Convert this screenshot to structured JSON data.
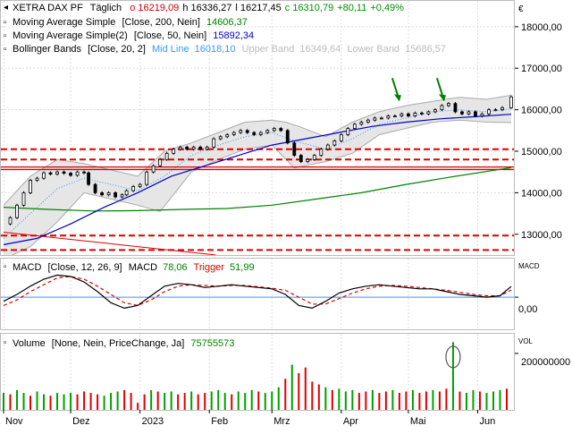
{
  "header": {
    "symbol": "XETRA DAX PF",
    "period": "Täglich",
    "ohlc": [
      {
        "label": "o",
        "value": "16219,09",
        "color": "#d00000"
      },
      {
        "label": "h",
        "value": "16336,27",
        "color": "#000000"
      },
      {
        "label": "l",
        "value": "16217,45",
        "color": "#000000"
      },
      {
        "label": "c",
        "value": "16310,79",
        "color": "#009000"
      },
      {
        "label": "",
        "value": "+80,11",
        "color": "#009000"
      },
      {
        "label": "",
        "value": "+0,49%",
        "color": "#009000"
      }
    ]
  },
  "legend": [
    {
      "name": "Moving Average Simple",
      "params": "[Close, 200, Nein]",
      "value": "14606,37",
      "color": "#008000"
    },
    {
      "name": "Moving Average Simple(2)",
      "params": "[Close, 50, Nein]",
      "value": "15892,34",
      "color": "#0000cc"
    },
    {
      "name": "Bollinger Bands",
      "params": "[Close, 20, 2]",
      "mid_label": "Mid Line",
      "mid_value": "16018,10",
      "mid_color": "#3399ff",
      "upper_label": "Upper Band",
      "upper_value": "16349,64",
      "lower_label": "Lower Band",
      "lower_value": "15686,57",
      "band_color": "#bbbbbb"
    }
  ],
  "currency_symbol": "€",
  "macd": {
    "label": "MACD",
    "params": "[Close, 12, 26, 9]",
    "macd_label": "MACD",
    "macd_value": "78,06",
    "trigger_label": "Trigger",
    "trigger_value": "51,99",
    "axis_title": "MACD",
    "tick_label": "0,00"
  },
  "volume": {
    "label": "Volume",
    "params": "[None, Nein, PriceChange, Ja]",
    "value": "75755573",
    "axis_title": "VOL",
    "tick_label": "200000000"
  },
  "chart_data": {
    "type": "candlestick",
    "y_range": [
      12500,
      18600
    ],
    "y_ticks": [
      {
        "value": 13000,
        "label": "13000,00"
      },
      {
        "value": 14000,
        "label": "14000,00"
      },
      {
        "value": 15000,
        "label": "15000,00"
      },
      {
        "value": 16000,
        "label": "16000,00"
      },
      {
        "value": 17000,
        "label": "17000,00"
      },
      {
        "value": 18000,
        "label": "18000,00"
      }
    ],
    "x_labels": [
      {
        "day": 0,
        "label": "Nov"
      },
      {
        "day": 30,
        "label": "Dez"
      },
      {
        "day": 61,
        "label": "2023"
      },
      {
        "day": 92,
        "label": "Feb"
      },
      {
        "day": 120,
        "label": "Mrz"
      },
      {
        "day": 151,
        "label": "Apr"
      },
      {
        "day": 181,
        "label": "Mai"
      },
      {
        "day": 212,
        "label": "Jun"
      }
    ],
    "day_range": [
      0,
      227
    ],
    "close_series": [
      [
        0,
        13250
      ],
      [
        3,
        13400
      ],
      [
        6,
        13700
      ],
      [
        9,
        14000
      ],
      [
        12,
        14300
      ],
      [
        15,
        14350
      ],
      [
        18,
        14480
      ],
      [
        21,
        14450
      ],
      [
        24,
        14500
      ],
      [
        27,
        14470
      ],
      [
        30,
        14420
      ],
      [
        33,
        14500
      ],
      [
        36,
        14480
      ],
      [
        38,
        14200
      ],
      [
        41,
        14000
      ],
      [
        44,
        13950
      ],
      [
        47,
        14000
      ],
      [
        50,
        13900
      ],
      [
        53,
        13950
      ],
      [
        55,
        14050
      ],
      [
        58,
        14150
      ],
      [
        61,
        14200
      ],
      [
        64,
        14500
      ],
      [
        67,
        14650
      ],
      [
        70,
        14800
      ],
      [
        73,
        14950
      ],
      [
        76,
        15050
      ],
      [
        79,
        15100
      ],
      [
        82,
        15050
      ],
      [
        85,
        15100
      ],
      [
        88,
        15050
      ],
      [
        91,
        15100
      ],
      [
        94,
        15300
      ],
      [
        97,
        15350
      ],
      [
        100,
        15400
      ],
      [
        103,
        15450
      ],
      [
        106,
        15500
      ],
      [
        109,
        15450
      ],
      [
        112,
        15400
      ],
      [
        115,
        15450
      ],
      [
        118,
        15500
      ],
      [
        121,
        15550
      ],
      [
        124,
        15500
      ],
      [
        127,
        15200
      ],
      [
        130,
        14900
      ],
      [
        133,
        14750
      ],
      [
        136,
        14800
      ],
      [
        139,
        14900
      ],
      [
        142,
        15050
      ],
      [
        145,
        15150
      ],
      [
        148,
        15250
      ],
      [
        151,
        15400
      ],
      [
        154,
        15550
      ],
      [
        157,
        15650
      ],
      [
        160,
        15700
      ],
      [
        163,
        15750
      ],
      [
        166,
        15800
      ],
      [
        169,
        15800
      ],
      [
        172,
        15850
      ],
      [
        175,
        15850
      ],
      [
        178,
        15900
      ],
      [
        181,
        15850
      ],
      [
        184,
        15920
      ],
      [
        187,
        15900
      ],
      [
        190,
        15950
      ],
      [
        193,
        16000
      ],
      [
        196,
        16100
      ],
      [
        199,
        16150
      ],
      [
        202,
        15950
      ],
      [
        205,
        15900
      ],
      [
        208,
        15950
      ],
      [
        211,
        15850
      ],
      [
        214,
        15900
      ],
      [
        217,
        16000
      ],
      [
        220,
        16000
      ],
      [
        223,
        16050
      ],
      [
        227,
        16310
      ]
    ],
    "bollinger_upper": [
      [
        0,
        13700
      ],
      [
        12,
        14400
      ],
      [
        24,
        14800
      ],
      [
        36,
        14700
      ],
      [
        48,
        14550
      ],
      [
        60,
        14400
      ],
      [
        72,
        15000
      ],
      [
        84,
        15200
      ],
      [
        96,
        15450
      ],
      [
        108,
        15700
      ],
      [
        120,
        15750
      ],
      [
        126,
        15700
      ],
      [
        132,
        15600
      ],
      [
        144,
        15350
      ],
      [
        156,
        15700
      ],
      [
        168,
        15950
      ],
      [
        180,
        16100
      ],
      [
        192,
        16200
      ],
      [
        204,
        16300
      ],
      [
        216,
        16250
      ],
      [
        227,
        16350
      ]
    ],
    "bollinger_mid": [
      [
        0,
        12900
      ],
      [
        12,
        13500
      ],
      [
        24,
        14100
      ],
      [
        36,
        14350
      ],
      [
        48,
        14200
      ],
      [
        60,
        14050
      ],
      [
        72,
        14400
      ],
      [
        84,
        14900
      ],
      [
        96,
        15150
      ],
      [
        108,
        15350
      ],
      [
        120,
        15450
      ],
      [
        130,
        15250
      ],
      [
        144,
        15050
      ],
      [
        156,
        15300
      ],
      [
        168,
        15650
      ],
      [
        180,
        15800
      ],
      [
        192,
        15950
      ],
      [
        204,
        16000
      ],
      [
        216,
        15950
      ],
      [
        227,
        16020
      ]
    ],
    "bollinger_lower": [
      [
        0,
        12400
      ],
      [
        12,
        12700
      ],
      [
        24,
        13300
      ],
      [
        36,
        14000
      ],
      [
        48,
        13850
      ],
      [
        60,
        13700
      ],
      [
        70,
        13550
      ],
      [
        84,
        14500
      ],
      [
        96,
        14800
      ],
      [
        108,
        15050
      ],
      [
        120,
        15150
      ],
      [
        130,
        14600
      ],
      [
        144,
        14750
      ],
      [
        156,
        14950
      ],
      [
        168,
        15400
      ],
      [
        180,
        15550
      ],
      [
        192,
        15700
      ],
      [
        204,
        15750
      ],
      [
        216,
        15700
      ],
      [
        227,
        15690
      ]
    ],
    "sma50": [
      [
        0,
        12750
      ],
      [
        15,
        12900
      ],
      [
        30,
        13250
      ],
      [
        45,
        13650
      ],
      [
        60,
        14000
      ],
      [
        75,
        14400
      ],
      [
        90,
        14650
      ],
      [
        105,
        14900
      ],
      [
        120,
        15150
      ],
      [
        135,
        15300
      ],
      [
        150,
        15450
      ],
      [
        165,
        15600
      ],
      [
        180,
        15700
      ],
      [
        195,
        15780
      ],
      [
        210,
        15830
      ],
      [
        227,
        15890
      ]
    ],
    "sma200": [
      [
        0,
        13650
      ],
      [
        20,
        13600
      ],
      [
        40,
        13560
      ],
      [
        60,
        13570
      ],
      [
        80,
        13600
      ],
      [
        100,
        13620
      ],
      [
        120,
        13700
      ],
      [
        140,
        13850
      ],
      [
        160,
        14000
      ],
      [
        180,
        14200
      ],
      [
        200,
        14380
      ],
      [
        227,
        14606
      ]
    ],
    "resistance_lines": [
      {
        "value": 15050,
        "style": "dashed"
      },
      {
        "value": 14800,
        "style": "dashed"
      },
      {
        "value": 14620,
        "style": "solid"
      },
      {
        "value": 14560,
        "style": "solid"
      },
      {
        "value": 12970,
        "style": "dashed"
      },
      {
        "value": 12620,
        "style": "dashed"
      }
    ],
    "trendline": [
      [
        0,
        13050
      ],
      [
        95,
        12500
      ]
    ],
    "annotations": [
      {
        "type": "arrow",
        "day": 177,
        "value": 16200
      },
      {
        "type": "arrow",
        "day": 197,
        "value": 16200
      }
    ],
    "macd_panel": {
      "y_range": [
        -220,
        260
      ],
      "zero": 0,
      "macd": [
        [
          0,
          -30
        ],
        [
          6,
          20
        ],
        [
          12,
          80
        ],
        [
          18,
          130
        ],
        [
          24,
          160
        ],
        [
          30,
          150
        ],
        [
          36,
          110
        ],
        [
          42,
          40
        ],
        [
          48,
          -40
        ],
        [
          54,
          -80
        ],
        [
          60,
          -60
        ],
        [
          66,
          10
        ],
        [
          72,
          80
        ],
        [
          78,
          100
        ],
        [
          84,
          90
        ],
        [
          90,
          70
        ],
        [
          96,
          80
        ],
        [
          102,
          90
        ],
        [
          108,
          80
        ],
        [
          114,
          70
        ],
        [
          120,
          60
        ],
        [
          126,
          20
        ],
        [
          132,
          -60
        ],
        [
          138,
          -80
        ],
        [
          144,
          -30
        ],
        [
          150,
          30
        ],
        [
          156,
          60
        ],
        [
          162,
          80
        ],
        [
          168,
          90
        ],
        [
          174,
          80
        ],
        [
          180,
          70
        ],
        [
          186,
          60
        ],
        [
          192,
          60
        ],
        [
          198,
          40
        ],
        [
          204,
          20
        ],
        [
          210,
          10
        ],
        [
          216,
          0
        ],
        [
          222,
          10
        ],
        [
          227,
          78
        ]
      ],
      "trigger": [
        [
          0,
          -60
        ],
        [
          6,
          -20
        ],
        [
          12,
          40
        ],
        [
          18,
          90
        ],
        [
          24,
          140
        ],
        [
          30,
          150
        ],
        [
          36,
          130
        ],
        [
          42,
          80
        ],
        [
          48,
          20
        ],
        [
          54,
          -40
        ],
        [
          60,
          -60
        ],
        [
          66,
          -20
        ],
        [
          72,
          40
        ],
        [
          78,
          80
        ],
        [
          84,
          90
        ],
        [
          90,
          85
        ],
        [
          96,
          80
        ],
        [
          102,
          85
        ],
        [
          108,
          85
        ],
        [
          114,
          75
        ],
        [
          120,
          65
        ],
        [
          126,
          50
        ],
        [
          132,
          0
        ],
        [
          138,
          -50
        ],
        [
          144,
          -50
        ],
        [
          150,
          -10
        ],
        [
          156,
          30
        ],
        [
          162,
          60
        ],
        [
          168,
          80
        ],
        [
          174,
          85
        ],
        [
          180,
          80
        ],
        [
          186,
          70
        ],
        [
          192,
          60
        ],
        [
          198,
          50
        ],
        [
          204,
          35
        ],
        [
          210,
          20
        ],
        [
          216,
          10
        ],
        [
          222,
          10
        ],
        [
          227,
          52
        ]
      ]
    },
    "volume_panel": {
      "y_max": 260000000,
      "bars": [
        [
          0,
          60
        ],
        [
          3,
          55
        ],
        [
          6,
          70
        ],
        [
          9,
          60
        ],
        [
          12,
          50
        ],
        [
          15,
          65
        ],
        [
          18,
          55
        ],
        [
          21,
          50
        ],
        [
          24,
          60
        ],
        [
          27,
          55
        ],
        [
          30,
          60
        ],
        [
          33,
          55
        ],
        [
          36,
          65
        ],
        [
          39,
          60
        ],
        [
          42,
          55
        ],
        [
          45,
          50
        ],
        [
          48,
          60
        ],
        [
          51,
          65
        ],
        [
          54,
          70
        ],
        [
          57,
          60
        ],
        [
          60,
          25
        ],
        [
          63,
          55
        ],
        [
          66,
          70
        ],
        [
          69,
          65
        ],
        [
          72,
          60
        ],
        [
          75,
          65
        ],
        [
          78,
          55
        ],
        [
          81,
          60
        ],
        [
          84,
          65
        ],
        [
          87,
          55
        ],
        [
          90,
          60
        ],
        [
          93,
          65
        ],
        [
          96,
          70
        ],
        [
          99,
          60
        ],
        [
          102,
          55
        ],
        [
          105,
          65
        ],
        [
          108,
          60
        ],
        [
          111,
          70
        ],
        [
          114,
          65
        ],
        [
          117,
          60
        ],
        [
          120,
          65
        ],
        [
          123,
          80
        ],
        [
          126,
          110
        ],
        [
          129,
          160
        ],
        [
          132,
          130
        ],
        [
          135,
          150
        ],
        [
          138,
          100
        ],
        [
          141,
          90
        ],
        [
          144,
          80
        ],
        [
          147,
          70
        ],
        [
          150,
          75
        ],
        [
          153,
          65
        ],
        [
          156,
          70
        ],
        [
          159,
          60
        ],
        [
          162,
          65
        ],
        [
          165,
          70
        ],
        [
          168,
          60
        ],
        [
          171,
          65
        ],
        [
          174,
          70
        ],
        [
          177,
          60
        ],
        [
          180,
          65
        ],
        [
          183,
          70
        ],
        [
          186,
          60
        ],
        [
          189,
          65
        ],
        [
          192,
          70
        ],
        [
          195,
          65
        ],
        [
          198,
          75
        ],
        [
          201,
          240
        ],
        [
          204,
          65
        ],
        [
          207,
          60
        ],
        [
          210,
          70
        ],
        [
          213,
          65
        ],
        [
          216,
          60
        ],
        [
          219,
          65
        ],
        [
          222,
          70
        ],
        [
          225,
          75
        ]
      ],
      "volume_unit_scale": 1000000,
      "highlight": {
        "day": 201,
        "value": 200000000
      }
    }
  },
  "colors": {
    "up": "#00a000",
    "down": "#e00000",
    "candle_body": "#000000",
    "sma200": "#008000",
    "sma50": "#0000cc",
    "bollinger_mid": "#3399ff",
    "bollinger_band": "#aaaaaa",
    "bollinger_fill": "#e6e6e6",
    "resistance": "#dd0000",
    "trendline": "#dd0000",
    "annotation_arrow": "#008000",
    "macd_line": "#000000",
    "trigger_line": "#dd0000",
    "zero_line": "#3399ff",
    "grid": "#dddddd"
  }
}
